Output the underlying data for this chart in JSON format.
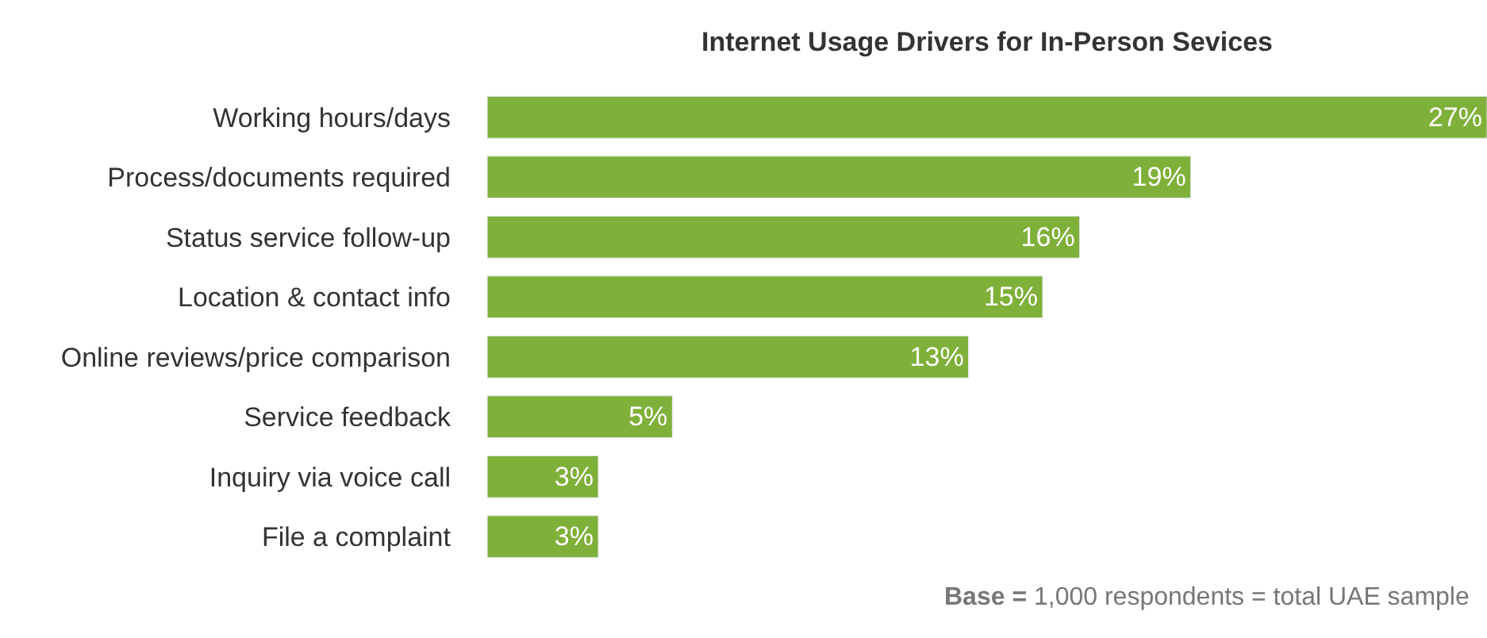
{
  "chart_data": {
    "type": "bar",
    "orientation": "horizontal",
    "title": "Internet Usage Drivers for In-Person Sevices",
    "categories": [
      "Working hours/days",
      "Process/documents required",
      "Status service follow-up",
      "Location & contact info",
      "Online reviews/price comparison",
      "Service feedback",
      "Inquiry via voice call",
      "File a complaint"
    ],
    "values": [
      27,
      19,
      16,
      15,
      13,
      5,
      3,
      3
    ],
    "value_labels": [
      "27%",
      "19%",
      "16%",
      "15%",
      "13%",
      "5%",
      "3%",
      "3%"
    ],
    "color": "#7fb03a",
    "annotations": [
      "Base = 1,000 respondents = total UAE sample"
    ]
  }
}
